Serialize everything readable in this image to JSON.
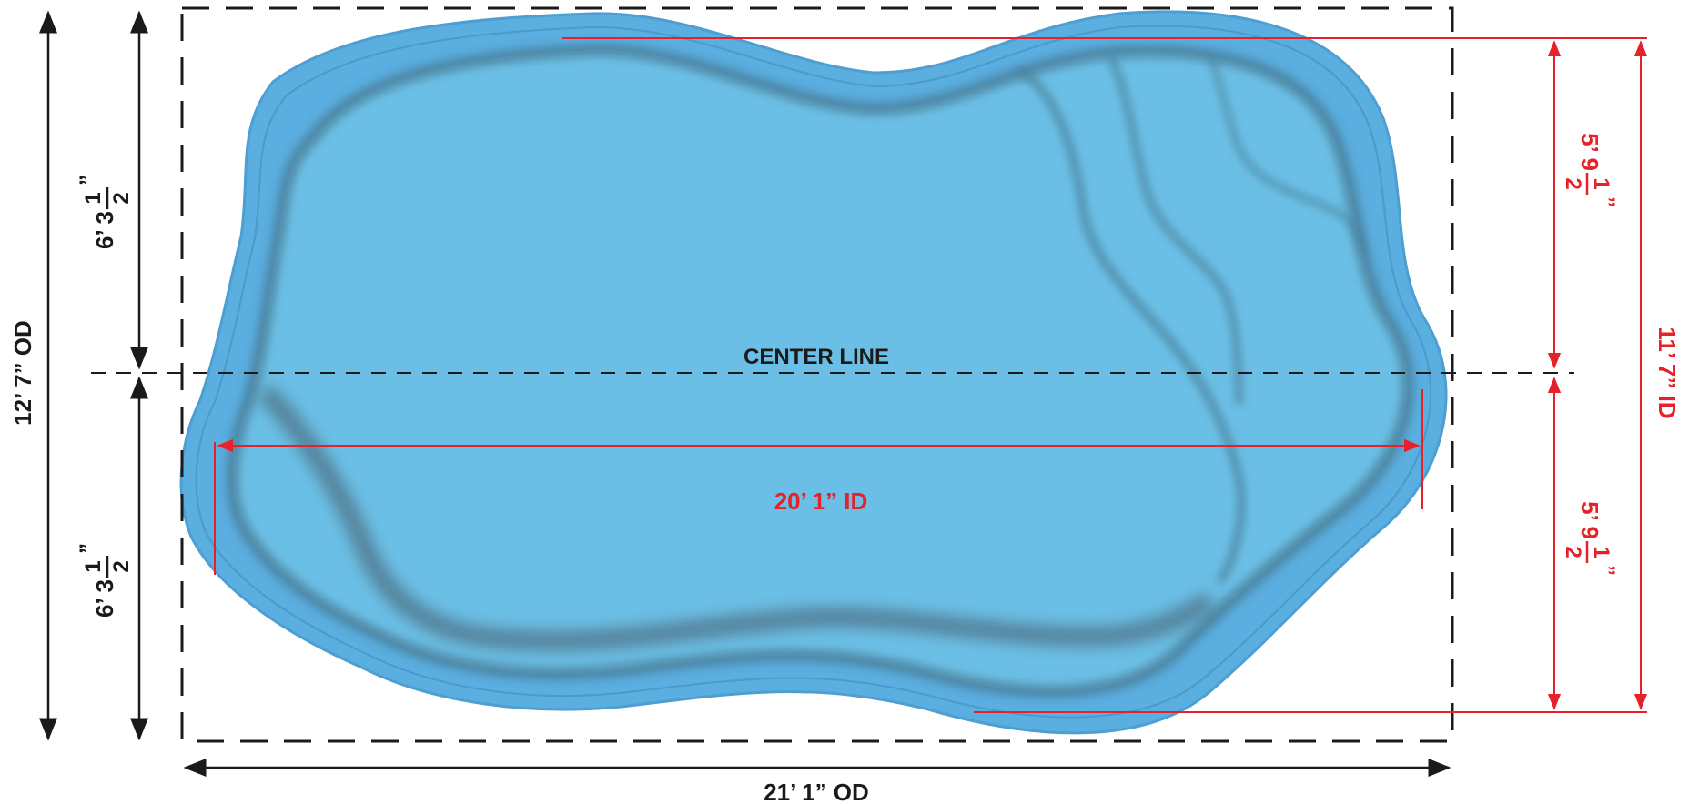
{
  "diagram": {
    "center_label": "CENTER LINE",
    "od_width": "21’ 1” OD",
    "od_length": "12’ 7” OD",
    "id_width": "20’ 1” ID",
    "id_length": "11’ 7” ID",
    "left_half": {
      "whole": "6’ 3",
      "numerator": "1",
      "mark": "”",
      "denominator": "2"
    },
    "right_half": {
      "whole": "5’ 9",
      "numerator": "1",
      "mark": "”",
      "denominator": "2"
    },
    "colors": {
      "pool_outer": "#5aaee0",
      "pool_inner": "#6bbfe6",
      "step_shadow": "#4a7e97",
      "dimension_red": "#e8202a",
      "dimension_black": "#1a1a1a"
    }
  }
}
